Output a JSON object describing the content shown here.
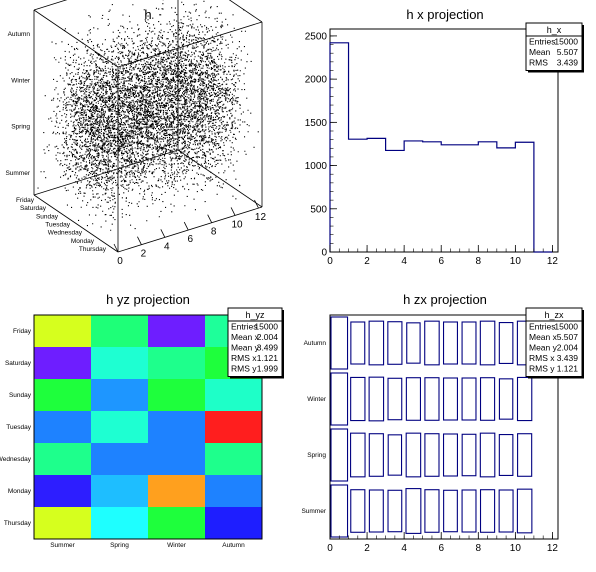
{
  "canvas_titles": [
    "h",
    "h x projection",
    "h yz projection",
    "h zx projection"
  ],
  "chart_data": [
    {
      "type": "scatter",
      "title": "h",
      "description_axes": {
        "x_ticks": [
          "0",
          "2",
          "4",
          "6",
          "8",
          "10",
          "12"
        ],
        "y_labels": [
          "Friday",
          "Saturday",
          "Sunday",
          "Tuesday",
          "Wednesday",
          "Monday",
          "Thursday"
        ],
        "z_labels": [
          "Summer",
          "Spring",
          "Winter",
          "Autumn"
        ]
      },
      "grid": false
    },
    {
      "type": "bar",
      "title": "h x projection",
      "bin_edges": [
        0,
        1,
        2,
        3,
        4,
        5,
        6,
        7,
        8,
        9,
        10,
        11,
        12
      ],
      "values": [
        2420,
        1305,
        1315,
        1175,
        1285,
        1275,
        1240,
        1240,
        1275,
        1205,
        1270,
        0
      ],
      "xlim": [
        0,
        12.3
      ],
      "ylim": [
        0,
        2580
      ],
      "x_ticks": [
        "0",
        "2",
        "4",
        "6",
        "8",
        "10",
        "12"
      ],
      "y_ticks": [
        "0",
        "500",
        "1000",
        "1500",
        "2000",
        "2500"
      ],
      "stats": {
        "name": "h_x",
        "rows": [
          {
            "label": "Entries",
            "value": "15000"
          },
          {
            "label": "Mean",
            "value": "5.507"
          },
          {
            "label": "RMS",
            "value": "3.439"
          }
        ]
      },
      "legend_position": "top-right"
    },
    {
      "type": "heatmap",
      "title": "h yz projection",
      "x_categories": [
        "Summer",
        "Spring",
        "Winter",
        "Autumn"
      ],
      "y_categories": [
        "Friday",
        "Saturday",
        "Sunday",
        "Tuesday",
        "Wednesday",
        "Monday",
        "Thursday"
      ],
      "cells_colors": [
        [
          "#d6ff1e",
          "#1eff78",
          "#6e1eff",
          "#1eff9a"
        ],
        [
          "#6e1eff",
          "#1effd2",
          "#1eff8c",
          "#1eff3c"
        ],
        [
          "#1eff3c",
          "#1e96ff",
          "#1eff3c",
          "#1effc8"
        ],
        [
          "#1e82ff",
          "#1effd2",
          "#1e82ff",
          "#ff1e1e"
        ],
        [
          "#1eff8c",
          "#1e82ff",
          "#1e82ff",
          "#1eff8c"
        ],
        [
          "#2d1eff",
          "#1ebeff",
          "#ffa01e",
          "#1e82ff"
        ],
        [
          "#d6ff1e",
          "#1effff",
          "#1eff3c",
          "#1e1eff"
        ]
      ],
      "stats": {
        "name": "h_yz",
        "rows": [
          {
            "label": "Entries",
            "value": "15000"
          },
          {
            "label": "Mean x",
            "value": "2.004"
          },
          {
            "label": "Mean y",
            "value": "3.499"
          },
          {
            "label": "RMS x",
            "value": "1.121"
          },
          {
            "label": "RMS y",
            "value": "1.999"
          }
        ]
      },
      "legend_position": "top-right"
    },
    {
      "type": "heatmap",
      "title": "h zx projection",
      "x_ticks": [
        "0",
        "2",
        "4",
        "6",
        "8",
        "10",
        "12"
      ],
      "xlim": [
        0,
        12.3
      ],
      "y_categories": [
        "Autumn",
        "Winter",
        "Spring",
        "Summer"
      ],
      "box_sizes": [
        [
          1.0,
          0.75,
          0.78,
          0.76,
          0.72,
          0.78,
          0.75,
          0.75,
          0.78,
          0.73,
          0.78
        ],
        [
          1.0,
          0.77,
          0.78,
          0.74,
          0.76,
          0.76,
          0.75,
          0.75,
          0.76,
          0.72,
          0.77
        ],
        [
          1.0,
          0.78,
          0.76,
          0.72,
          0.78,
          0.76,
          0.75,
          0.74,
          0.78,
          0.73,
          0.76
        ],
        [
          1.0,
          0.76,
          0.75,
          0.74,
          0.8,
          0.76,
          0.74,
          0.75,
          0.76,
          0.75,
          0.78
        ]
      ],
      "stats": {
        "name": "h_zx",
        "rows": [
          {
            "label": "Entries",
            "value": "15000"
          },
          {
            "label": "Mean x",
            "value": "5.507"
          },
          {
            "label": "Mean y",
            "value": "2.004"
          },
          {
            "label": "RMS x",
            "value": "3.439"
          },
          {
            "label": "RMS y",
            "value": "1.121"
          }
        ]
      },
      "legend_position": "top-right"
    }
  ]
}
